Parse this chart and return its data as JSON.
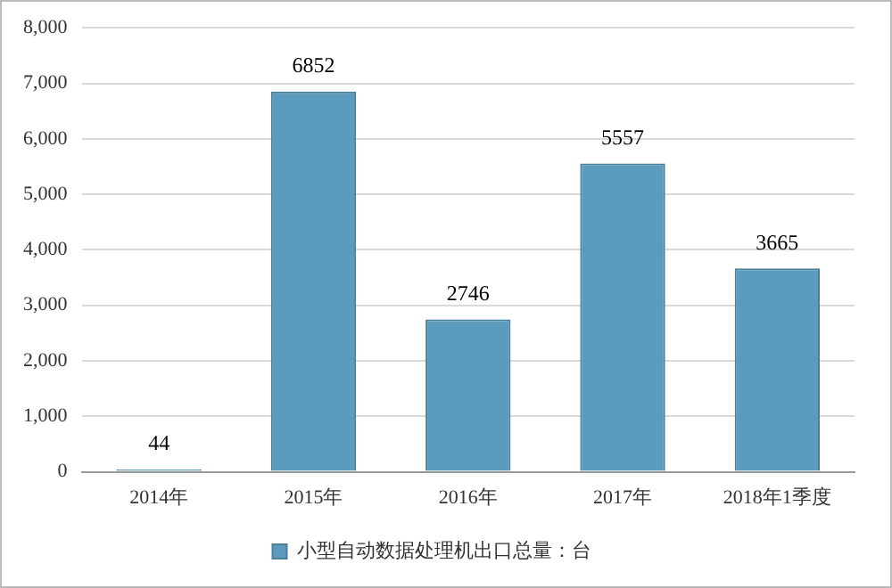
{
  "chart_data": {
    "type": "bar",
    "categories": [
      "2014年",
      "2015年",
      "2016年",
      "2017年",
      "2018年1季度"
    ],
    "series": [
      {
        "name": "小型自动数据处理机出口总量：台",
        "color": "#5b9bbd",
        "values": [
          44,
          6852,
          2746,
          5557,
          3665
        ]
      }
    ],
    "ylim": [
      0,
      8000
    ],
    "yticks": [
      {
        "value": 0,
        "label": "0"
      },
      {
        "value": 1000,
        "label": "1,000"
      },
      {
        "value": 2000,
        "label": "2,000"
      },
      {
        "value": 3000,
        "label": "3,000"
      },
      {
        "value": 4000,
        "label": "4,000"
      },
      {
        "value": 5000,
        "label": "5,000"
      },
      {
        "value": 6000,
        "label": "6,000"
      },
      {
        "value": 7000,
        "label": "7,000"
      },
      {
        "value": 8000,
        "label": "8,000"
      }
    ],
    "grid": "y",
    "legend": "bottom",
    "data_labels": true
  }
}
